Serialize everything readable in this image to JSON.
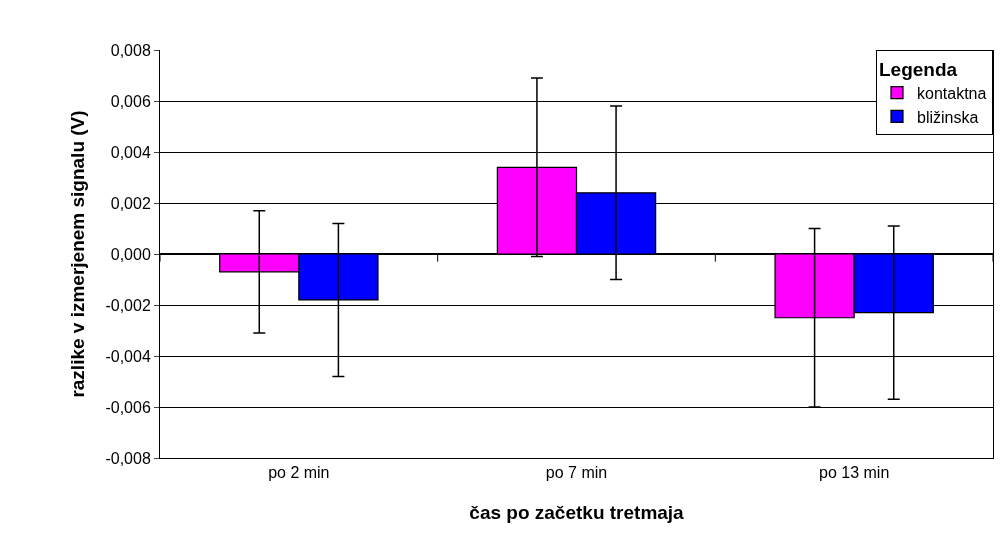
{
  "chart_data": {
    "type": "bar",
    "xlabel": "čas po začetku tretmaja",
    "ylabel": "razlike v izmerjenem signalu (V)",
    "legend_title": "Legenda",
    "categories": [
      "po 2 min",
      "po 7 min",
      "po 13 min"
    ],
    "series": [
      {
        "name": "kontaktna",
        "color": "#ff00ff",
        "values": [
          -0.0007,
          0.0034,
          -0.0025
        ],
        "errors": [
          0.0024,
          0.0035,
          0.0035
        ]
      },
      {
        "name": "bližinska",
        "color": "#0000ff",
        "values": [
          -0.0018,
          0.0024,
          -0.0023
        ],
        "errors": [
          0.003,
          0.0034,
          0.0034
        ]
      }
    ],
    "ylim": [
      -0.008,
      0.008
    ],
    "yticks": [
      {
        "value": -0.008,
        "label": "-0,008"
      },
      {
        "value": -0.006,
        "label": "-0,006"
      },
      {
        "value": -0.004,
        "label": "-0,004"
      },
      {
        "value": -0.002,
        "label": "-0,002"
      },
      {
        "value": 0,
        "label": "0,000"
      },
      {
        "value": 0.002,
        "label": "0,002"
      },
      {
        "value": 0.004,
        "label": "0,004"
      },
      {
        "value": 0.006,
        "label": "0,006"
      },
      {
        "value": 0.008,
        "label": "0,008"
      }
    ],
    "grid": "y",
    "legend": "top right"
  }
}
